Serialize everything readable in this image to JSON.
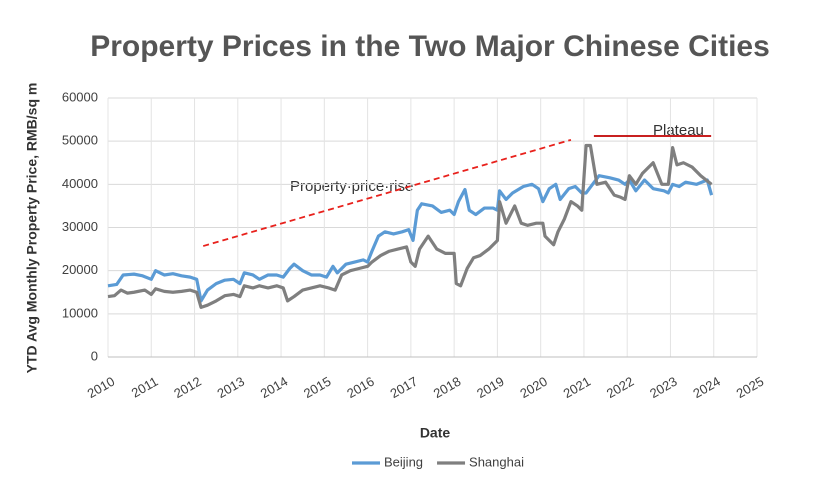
{
  "chart_data": {
    "type": "line",
    "title": "Property Prices in the Two Major Chinese Cities",
    "x_label": "Date",
    "y_label": "YTD Avg Monthly Property Price, RMB/sq m",
    "annotations": [
      "Property·price·rise",
      "Plateau"
    ],
    "lines": [
      {
        "x": [
          2012.2,
          2020.7
        ],
        "y": [
          25700,
          50300
        ],
        "color": "#e8211c",
        "dashed": true
      },
      {
        "x": [
          2021.23,
          2023.94
        ],
        "y": [
          51200,
          51200
        ],
        "color": "#c00000",
        "dashed": false
      }
    ],
    "xlim": [
      2010,
      2025
    ],
    "xticks": [
      2010,
      2011,
      2012,
      2013,
      2014,
      2015,
      2016,
      2017,
      2018,
      2019,
      2020,
      2021,
      2022,
      2023,
      2024,
      2025
    ],
    "ylim": [
      0,
      60000
    ],
    "yticks": [
      0,
      10000,
      20000,
      30000,
      40000,
      50000,
      60000
    ],
    "grid": true,
    "legend": "bottom",
    "series": [
      {
        "name": "Beijing",
        "color": "#5b9bd5",
        "x": [
          2010.0,
          2010.2,
          2010.35,
          2010.6,
          2010.8,
          2011.0,
          2011.1,
          2011.3,
          2011.5,
          2011.7,
          2011.9,
          2012.05,
          2012.15,
          2012.3,
          2012.5,
          2012.7,
          2012.9,
          2013.05,
          2013.15,
          2013.35,
          2013.5,
          2013.7,
          2013.9,
          2014.05,
          2014.2,
          2014.3,
          2014.5,
          2014.7,
          2014.9,
          2015.05,
          2015.2,
          2015.3,
          2015.5,
          2015.7,
          2015.9,
          2016.0,
          2016.1,
          2016.25,
          2016.4,
          2016.6,
          2016.8,
          2016.95,
          2017.05,
          2017.15,
          2017.25,
          2017.5,
          2017.7,
          2017.9,
          2018.0,
          2018.1,
          2018.25,
          2018.35,
          2018.5,
          2018.7,
          2018.9,
          2019.0,
          2019.05,
          2019.2,
          2019.35,
          2019.6,
          2019.8,
          2019.95,
          2020.05,
          2020.2,
          2020.35,
          2020.45,
          2020.65,
          2020.8,
          2020.95,
          2021.05,
          2021.2,
          2021.35,
          2021.6,
          2021.8,
          2021.95,
          2022.05,
          2022.2,
          2022.4,
          2022.6,
          2022.85,
          2022.95,
          2023.05,
          2023.2,
          2023.35,
          2023.6,
          2023.85,
          2023.95
        ],
        "values": [
          16500,
          16800,
          19000,
          19200,
          18800,
          18000,
          20000,
          19000,
          19300,
          18800,
          18500,
          18000,
          13000,
          15500,
          17000,
          17800,
          18000,
          17000,
          19500,
          19000,
          18000,
          19000,
          19000,
          18500,
          20500,
          21500,
          20000,
          19000,
          19000,
          18500,
          21000,
          19500,
          21500,
          22000,
          22500,
          22000,
          24500,
          28000,
          29000,
          28500,
          29000,
          29500,
          27000,
          34000,
          35500,
          35000,
          33500,
          34000,
          33000,
          36000,
          38800,
          34000,
          33000,
          34500,
          34500,
          34000,
          38500,
          36500,
          38000,
          39500,
          40000,
          39000,
          36000,
          39000,
          40000,
          36500,
          39000,
          39500,
          38000,
          38000,
          40000,
          42000,
          41500,
          41000,
          40000,
          41000,
          38500,
          41000,
          39000,
          38500,
          38000,
          40000,
          39500,
          40500,
          40000,
          41000,
          37500
        ]
      },
      {
        "name": "Shanghai",
        "color": "#7f7f7f",
        "x": [
          2010.0,
          2010.15,
          2010.3,
          2010.45,
          2010.6,
          2010.85,
          2011.0,
          2011.1,
          2011.3,
          2011.5,
          2011.7,
          2011.9,
          2012.05,
          2012.15,
          2012.3,
          2012.5,
          2012.7,
          2012.9,
          2013.05,
          2013.15,
          2013.35,
          2013.5,
          2013.7,
          2013.9,
          2014.05,
          2014.15,
          2014.3,
          2014.5,
          2014.7,
          2014.9,
          2015.1,
          2015.25,
          2015.4,
          2015.6,
          2015.8,
          2016.0,
          2016.1,
          2016.3,
          2016.5,
          2016.7,
          2016.9,
          2017.0,
          2017.1,
          2017.2,
          2017.4,
          2017.6,
          2017.8,
          2018.0,
          2018.05,
          2018.15,
          2018.3,
          2018.45,
          2018.6,
          2018.8,
          2019.0,
          2019.05,
          2019.2,
          2019.4,
          2019.55,
          2019.7,
          2019.9,
          2020.05,
          2020.1,
          2020.2,
          2020.3,
          2020.4,
          2020.55,
          2020.7,
          2020.85,
          2020.95,
          2021.05,
          2021.15,
          2021.3,
          2021.5,
          2021.7,
          2021.85,
          2021.95,
          2022.05,
          2022.2,
          2022.35,
          2022.6,
          2022.8,
          2022.95,
          2023.05,
          2023.15,
          2023.3,
          2023.5,
          2023.7,
          2023.95
        ],
        "values": [
          14000,
          14200,
          15500,
          14800,
          15000,
          15500,
          14500,
          15800,
          15200,
          15000,
          15200,
          15500,
          15000,
          11500,
          12000,
          13000,
          14200,
          14500,
          14000,
          16500,
          16000,
          16500,
          16000,
          16500,
          16000,
          13000,
          14000,
          15500,
          16000,
          16500,
          16000,
          15500,
          19000,
          20000,
          20500,
          21000,
          22000,
          23500,
          24500,
          25000,
          25500,
          22000,
          21000,
          25000,
          28000,
          25000,
          24000,
          24000,
          17000,
          16500,
          20500,
          23000,
          23500,
          25000,
          27000,
          36000,
          31000,
          35000,
          31000,
          30500,
          31000,
          31000,
          28000,
          27000,
          26000,
          29000,
          32000,
          36000,
          35000,
          34000,
          49000,
          49000,
          40000,
          40500,
          37500,
          37000,
          36500,
          42000,
          40000,
          42500,
          45000,
          40000,
          40000,
          48500,
          44500,
          45000,
          44000,
          42000,
          40000
        ]
      }
    ]
  }
}
